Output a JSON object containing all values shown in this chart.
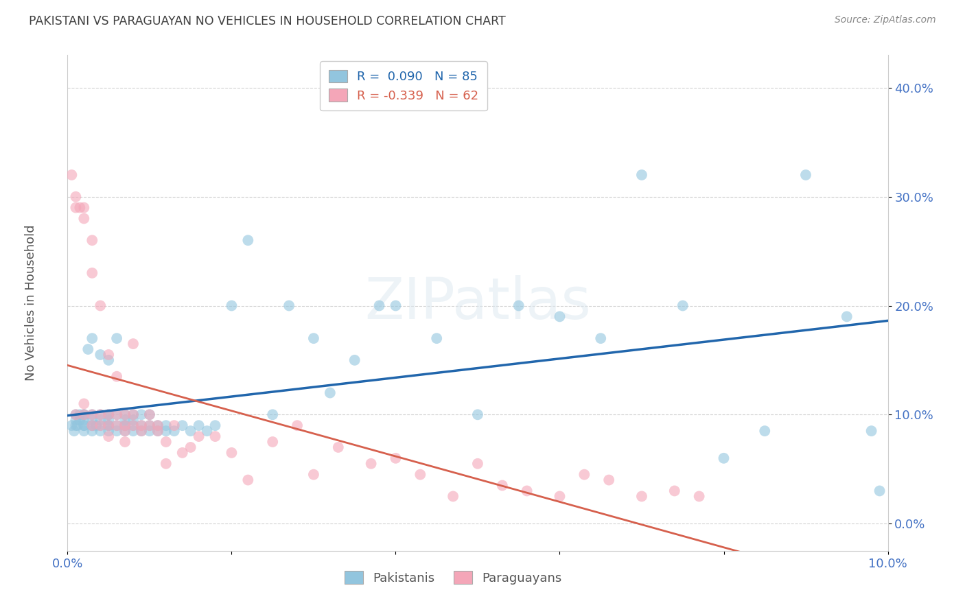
{
  "title": "PAKISTANI VS PARAGUAYAN NO VEHICLES IN HOUSEHOLD CORRELATION CHART",
  "source": "Source: ZipAtlas.com",
  "ylabel": "No Vehicles in Household",
  "xlabel_pakistani": "Pakistanis",
  "xlabel_paraguayan": "Paraguayans",
  "xlim": [
    0.0,
    0.1
  ],
  "ylim": [
    0.0,
    0.42
  ],
  "ytick_values": [
    0.0,
    0.1,
    0.2,
    0.3,
    0.4
  ],
  "xtick_values": [
    0.0,
    0.02,
    0.04,
    0.06,
    0.08,
    0.1
  ],
  "blue_color": "#92c5de",
  "pink_color": "#f4a6b8",
  "blue_line_color": "#2166ac",
  "pink_line_color": "#d6604d",
  "title_color": "#404040",
  "axis_tick_color": "#4472c4",
  "grid_color": "#cccccc",
  "background_color": "#ffffff",
  "blue_r": 0.09,
  "blue_n": 85,
  "pink_r": -0.339,
  "pink_n": 62,
  "pakistani_x": [
    0.0005,
    0.0008,
    0.001,
    0.001,
    0.001,
    0.0012,
    0.0015,
    0.0015,
    0.002,
    0.002,
    0.002,
    0.002,
    0.002,
    0.002,
    0.0025,
    0.003,
    0.003,
    0.003,
    0.003,
    0.003,
    0.003,
    0.0035,
    0.004,
    0.004,
    0.004,
    0.004,
    0.004,
    0.005,
    0.005,
    0.005,
    0.005,
    0.005,
    0.005,
    0.005,
    0.006,
    0.006,
    0.006,
    0.006,
    0.007,
    0.007,
    0.007,
    0.007,
    0.007,
    0.008,
    0.008,
    0.008,
    0.008,
    0.009,
    0.009,
    0.009,
    0.01,
    0.01,
    0.01,
    0.011,
    0.011,
    0.012,
    0.012,
    0.013,
    0.014,
    0.015,
    0.016,
    0.017,
    0.018,
    0.02,
    0.022,
    0.025,
    0.027,
    0.03,
    0.032,
    0.035,
    0.038,
    0.04,
    0.045,
    0.05,
    0.055,
    0.06,
    0.065,
    0.07,
    0.075,
    0.08,
    0.085,
    0.09,
    0.095,
    0.098,
    0.099
  ],
  "pakistani_y": [
    0.09,
    0.085,
    0.09,
    0.1,
    0.095,
    0.09,
    0.1,
    0.095,
    0.09,
    0.085,
    0.1,
    0.095,
    0.09,
    0.1,
    0.16,
    0.09,
    0.085,
    0.09,
    0.1,
    0.095,
    0.17,
    0.09,
    0.09,
    0.085,
    0.1,
    0.095,
    0.155,
    0.09,
    0.085,
    0.1,
    0.095,
    0.09,
    0.1,
    0.15,
    0.09,
    0.085,
    0.1,
    0.17,
    0.09,
    0.085,
    0.1,
    0.095,
    0.09,
    0.085,
    0.1,
    0.095,
    0.09,
    0.085,
    0.1,
    0.09,
    0.085,
    0.1,
    0.09,
    0.085,
    0.09,
    0.085,
    0.09,
    0.085,
    0.09,
    0.085,
    0.09,
    0.085,
    0.09,
    0.2,
    0.26,
    0.1,
    0.2,
    0.17,
    0.12,
    0.15,
    0.2,
    0.2,
    0.17,
    0.1,
    0.2,
    0.19,
    0.17,
    0.32,
    0.2,
    0.06,
    0.085,
    0.32,
    0.19,
    0.085,
    0.03
  ],
  "paraguayan_x": [
    0.0005,
    0.001,
    0.001,
    0.001,
    0.0015,
    0.002,
    0.002,
    0.002,
    0.002,
    0.003,
    0.003,
    0.003,
    0.003,
    0.004,
    0.004,
    0.004,
    0.005,
    0.005,
    0.005,
    0.005,
    0.006,
    0.006,
    0.006,
    0.007,
    0.007,
    0.007,
    0.007,
    0.008,
    0.008,
    0.008,
    0.009,
    0.009,
    0.01,
    0.01,
    0.011,
    0.011,
    0.012,
    0.012,
    0.013,
    0.014,
    0.015,
    0.016,
    0.018,
    0.02,
    0.022,
    0.025,
    0.028,
    0.03,
    0.033,
    0.037,
    0.04,
    0.043,
    0.047,
    0.05,
    0.053,
    0.056,
    0.06,
    0.063,
    0.066,
    0.07,
    0.074,
    0.077
  ],
  "paraguayan_y": [
    0.32,
    0.3,
    0.29,
    0.1,
    0.29,
    0.29,
    0.28,
    0.1,
    0.11,
    0.26,
    0.09,
    0.1,
    0.23,
    0.09,
    0.1,
    0.2,
    0.155,
    0.09,
    0.1,
    0.08,
    0.135,
    0.09,
    0.1,
    0.09,
    0.1,
    0.075,
    0.085,
    0.09,
    0.1,
    0.165,
    0.09,
    0.085,
    0.09,
    0.1,
    0.09,
    0.085,
    0.075,
    0.055,
    0.09,
    0.065,
    0.07,
    0.08,
    0.08,
    0.065,
    0.04,
    0.075,
    0.09,
    0.045,
    0.07,
    0.055,
    0.06,
    0.045,
    0.025,
    0.055,
    0.035,
    0.03,
    0.025,
    0.045,
    0.04,
    0.025,
    0.03,
    0.025
  ]
}
